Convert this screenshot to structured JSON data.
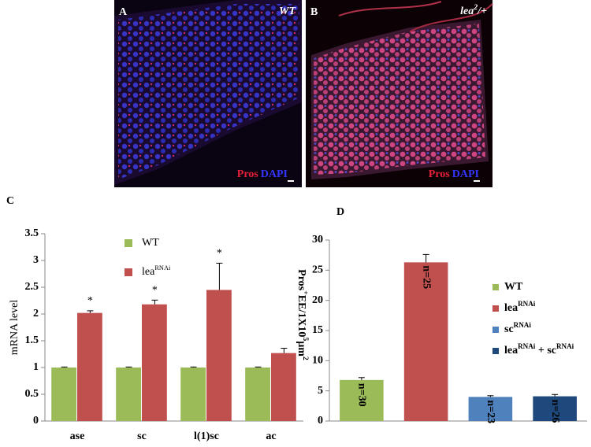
{
  "panels": [
    {
      "label": "A",
      "genotype": [
        {
          "text": "WT"
        }
      ],
      "stain": [
        {
          "text": "Pros",
          "color": "#e8203a"
        },
        {
          "text": "DAPI",
          "color": "#3535ff"
        }
      ]
    },
    {
      "label": "B",
      "genotype": [
        {
          "text": "lea"
        },
        {
          "sup": "2"
        },
        {
          "text": "/+"
        }
      ],
      "stain": [
        {
          "text": "Pros",
          "color": "#e8203a"
        },
        {
          "text": "DAPI",
          "color": "#3535ff"
        }
      ]
    }
  ],
  "chart_data": [
    {
      "type": "bar",
      "panel": "C",
      "ylabel": [
        {
          "text": "mRNA level"
        }
      ],
      "categories": [
        "ase",
        "sc",
        "l(1)sc",
        "ac"
      ],
      "series": [
        {
          "name": [
            {
              "text": "WT"
            }
          ],
          "color": "#9bbb59",
          "values": [
            1,
            1,
            1,
            1
          ],
          "errors": [
            0.01,
            0.01,
            0.01,
            0.01
          ]
        },
        {
          "name": [
            {
              "text": "lea"
            },
            {
              "sup": "RNAi"
            }
          ],
          "color": "#c0504d",
          "values": [
            2.02,
            2.18,
            2.45,
            1.27
          ],
          "errors": [
            0.04,
            0.08,
            0.5,
            0.09
          ]
        }
      ],
      "significance": [
        "*",
        "*",
        "*",
        null
      ],
      "ylim": [
        0,
        3.5
      ],
      "yticks": [
        0,
        0.5,
        1,
        1.5,
        2,
        2.5,
        3,
        3.5
      ]
    },
    {
      "type": "bar",
      "panel": "D",
      "ylabel": [
        {
          "text": "Pros"
        },
        {
          "sup": "+"
        },
        {
          "text": "EE/1X10"
        },
        {
          "sup": "5"
        },
        {
          "text": "μm"
        },
        {
          "sup": "2"
        }
      ],
      "legend": [
        [
          {
            "text": "WT"
          }
        ],
        [
          {
            "text": "lea"
          },
          {
            "sup": "RNAi"
          }
        ],
        [
          {
            "text": "sc"
          },
          {
            "sup": "RNAi"
          }
        ],
        [
          {
            "text": "lea"
          },
          {
            "sup": "RNAi"
          },
          {
            "text": " + sc"
          },
          {
            "sup": "RNAi"
          }
        ]
      ],
      "values": [
        6.8,
        26.3,
        4,
        4.1
      ],
      "errors": [
        0.4,
        1.3,
        0.2,
        0.3
      ],
      "value_labels": [
        "n=30",
        "n=25",
        "n=23",
        "n=26"
      ],
      "colors": [
        "#9bbb59",
        "#c0504d",
        "#4f81bd",
        "#1f497d"
      ],
      "ylim": [
        0,
        30
      ],
      "yticks": [
        0,
        5,
        10,
        15,
        20,
        25,
        30
      ]
    }
  ]
}
